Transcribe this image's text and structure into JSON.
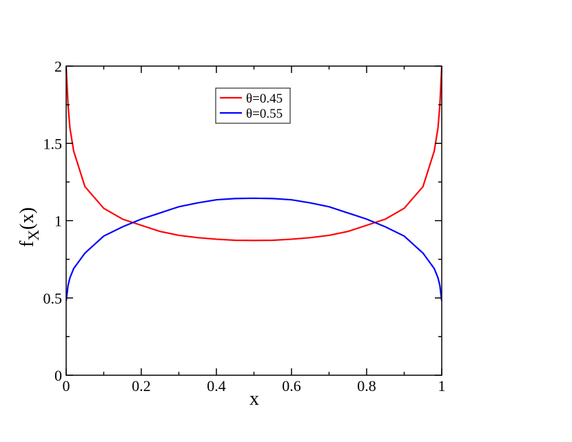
{
  "chart_data": {
    "type": "line",
    "xlabel": "x",
    "ylabel": {
      "base": "f",
      "sub": "X",
      "rest": "(x)"
    },
    "x": [
      0,
      0.005,
      0.01,
      0.02,
      0.05,
      0.1,
      0.15,
      0.2,
      0.25,
      0.3,
      0.35,
      0.4,
      0.45,
      0.5,
      0.55,
      0.6,
      0.65,
      0.7,
      0.75,
      0.8,
      0.85,
      0.9,
      0.95,
      0.98,
      0.99,
      0.995,
      1
    ],
    "series": [
      {
        "name": "θ=0.45",
        "color": "#ff0000",
        "values": [
          2,
          1.75,
          1.6,
          1.45,
          1.22,
          1.08,
          1.01,
          0.97,
          0.93,
          0.905,
          0.89,
          0.88,
          0.873,
          0.872,
          0.873,
          0.88,
          0.89,
          0.905,
          0.93,
          0.97,
          1.01,
          1.08,
          1.22,
          1.45,
          1.6,
          1.75,
          2
        ]
      },
      {
        "name": "θ=0.55",
        "color": "#0000ff",
        "values": [
          0.48,
          0.58,
          0.63,
          0.69,
          0.79,
          0.9,
          0.96,
          1.01,
          1.05,
          1.09,
          1.115,
          1.135,
          1.143,
          1.145,
          1.143,
          1.135,
          1.115,
          1.09,
          1.05,
          1.01,
          0.96,
          0.9,
          0.79,
          0.69,
          0.63,
          0.58,
          0.48
        ]
      }
    ],
    "xlim": [
      0,
      1
    ],
    "xticks": [
      0,
      0.2,
      0.4,
      0.6,
      0.8,
      1
    ],
    "x_minor_ticks": [
      0.1,
      0.3,
      0.5,
      0.7,
      0.9
    ],
    "ylim": [
      0,
      2
    ],
    "yticks": [
      0,
      0.5,
      1,
      1.5,
      2
    ],
    "y_minor_ticks": [
      0.25,
      0.75,
      1.25,
      1.75
    ],
    "legend": "top-center"
  }
}
